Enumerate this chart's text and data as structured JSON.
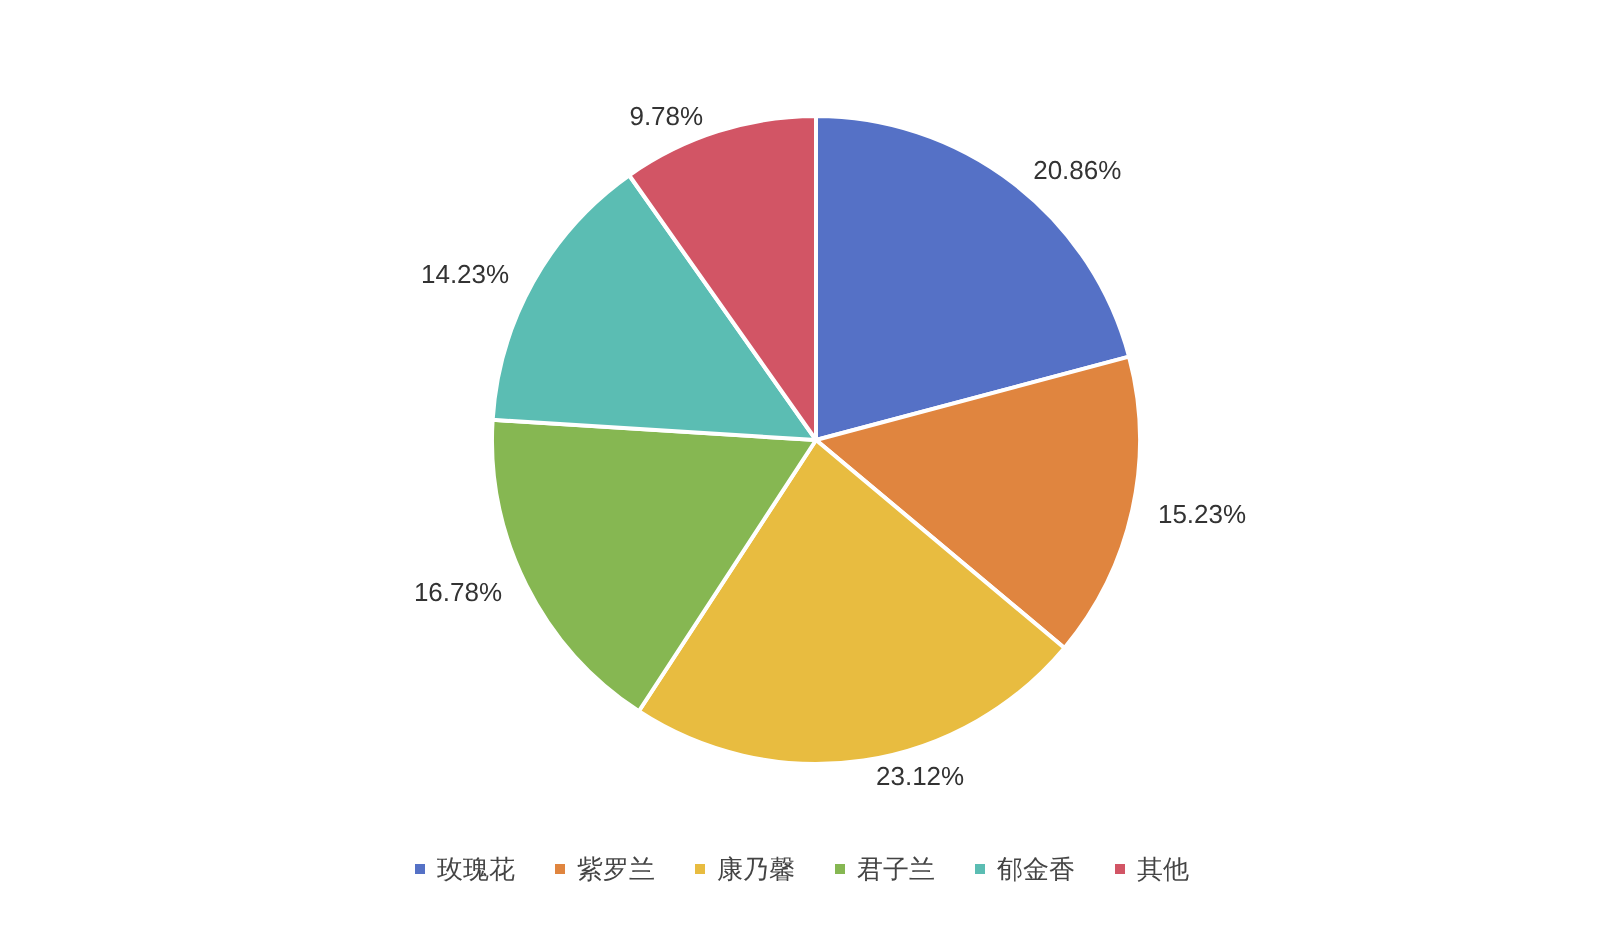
{
  "chart_data": {
    "type": "pie",
    "categories": [
      "玫瑰花",
      "紫罗兰",
      "康乃馨",
      "君子兰",
      "郁金香",
      "其他"
    ],
    "values": [
      20.86,
      15.23,
      23.12,
      16.78,
      14.23,
      9.78
    ],
    "value_labels": [
      "20.86%",
      "15.23%",
      "23.12%",
      "16.78%",
      "14.23%",
      "9.78%"
    ],
    "colors": [
      "#5571c6",
      "#e0853f",
      "#e8bc40",
      "#86b752",
      "#5bbdb3",
      "#d25565"
    ],
    "legend": "bottom"
  }
}
